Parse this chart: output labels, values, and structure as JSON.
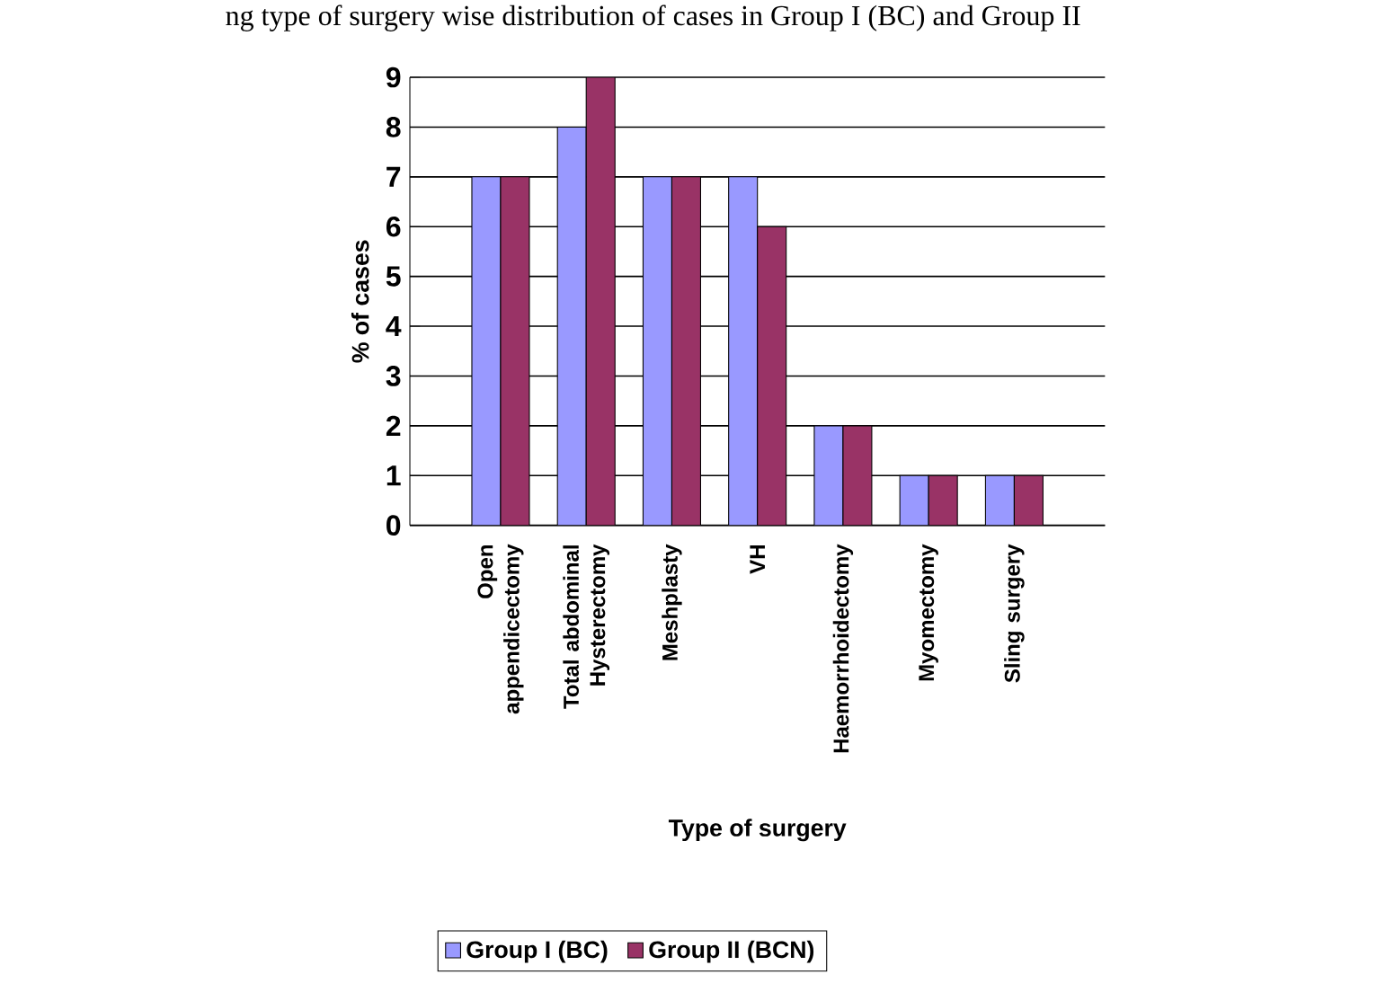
{
  "chart_data": {
    "type": "bar",
    "title": "ng type of surgery wise distribution of cases in Group I (BC) and Group II",
    "xlabel": "Type of surgery",
    "ylabel": "% of cases",
    "categories": [
      "Open appendicectomy",
      "Total abdominal Hysterectomy",
      "Meshplasty",
      "VH",
      "Haemorrhoidectomy",
      "Myomectomy",
      "Sling surgery"
    ],
    "series": [
      {
        "name": "Group I (BC)",
        "color": "#9999ff",
        "values": [
          7,
          8,
          7,
          7,
          2,
          1,
          1
        ]
      },
      {
        "name": "Group II (BCN)",
        "color": "#993366",
        "values": [
          7,
          9,
          7,
          6,
          2,
          1,
          1
        ]
      }
    ],
    "ylim": [
      0,
      9
    ],
    "yticks": [
      0,
      1,
      2,
      3,
      4,
      5,
      6,
      7,
      8,
      9
    ],
    "grid": "y",
    "legend": "bottom"
  }
}
